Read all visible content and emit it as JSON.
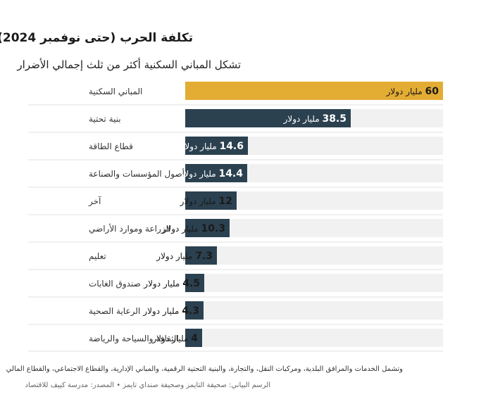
{
  "header": {
    "title": "تكلفة الحرب (حتى نوفمبر 2024)",
    "subtitle": "تشكل المباني السكنية أكثر من ثلث إجمالي الأضرار"
  },
  "footer": {
    "note": "وتشمل الخدمات والمرافق البلدية، ومركبات النقل، والتجارة، والبنية التحتية الرقمية، والمباني الإدارية، والقطاع الاجتماعي، والقطاع المالي",
    "credits": "الرسم البياني: صحيفة التايمز وصحيفة صنداي تايمز • المصدر: مدرسة كييف للاقتصاد"
  },
  "colors": {
    "highlight": "#E3AC33",
    "bar": "#2B4150",
    "track": "#F1F1F1",
    "divider": "#E2E2E2"
  },
  "chart_data": {
    "type": "bar",
    "orientation": "horizontal",
    "unit_suffix": "مليار دولار",
    "xlim": [
      0,
      60
    ],
    "grid": false,
    "categories": [
      "المباني السكنية",
      "بنية تحتية",
      "قطاع الطاقة",
      "أصول المؤسسات والصناعة",
      "آخر",
      "الزراعة وموارد الأراضي",
      "تعليم",
      "صندوق الغابات",
      "الرعاية الصحية",
      "الثقافة والسياحة والرياضة"
    ],
    "values": [
      60,
      38.5,
      14.6,
      14.4,
      12,
      10.3,
      7.3,
      4.5,
      4.3,
      4
    ],
    "highlighted_index": 0
  }
}
